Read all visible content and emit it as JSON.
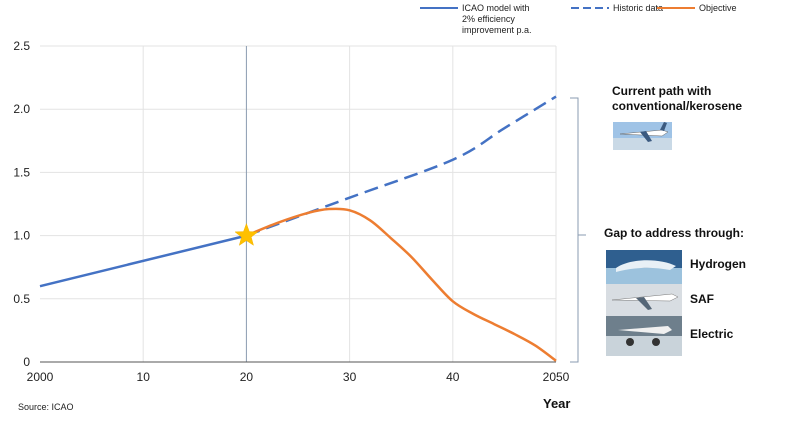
{
  "legend": [
    {
      "label_lines": [
        "ICAO model with",
        "2% efficiency",
        "improvement p.a."
      ],
      "color": "#4472C4",
      "style": "solid"
    },
    {
      "label_lines": [
        "Historic data"
      ],
      "color": "#4472C4",
      "style": "dashed"
    },
    {
      "label_lines": [
        "Objective"
      ],
      "color": "#ED7D31",
      "style": "solid"
    }
  ],
  "source": "Source: ICAO",
  "side_panel": {
    "current_path": [
      "Current path with",
      "conventional/kerosene"
    ],
    "gap_title": "Gap to address through:",
    "options": [
      "Hydrogen",
      "SAF",
      "Electric"
    ],
    "images": [
      "airplane-photo",
      "hydrogen-aircraft-photo",
      "saf-aircraft-photo",
      "electric-aircraft-photo"
    ]
  },
  "chart_data": {
    "type": "line",
    "xlabel": "Year",
    "ylabel": "",
    "xlim": [
      2000,
      2050
    ],
    "ylim": [
      0,
      2.5
    ],
    "x_ticks": [
      2000,
      2010,
      2020,
      2030,
      2040,
      2050
    ],
    "x_tick_labels": [
      "2000",
      "10",
      "20",
      "30",
      "40",
      "2050"
    ],
    "y_ticks": [
      0,
      0.5,
      1.0,
      1.5,
      2.0,
      2.5
    ],
    "y_tick_labels": [
      "0",
      "0.5",
      "1.0",
      "1.5",
      "2.0",
      "2.5"
    ],
    "vertical_marker_x": 2020,
    "star_point": {
      "x": 2020,
      "y": 1.0
    },
    "grid": true,
    "series": [
      {
        "name": "ICAO model with 2% efficiency improvement p.a.",
        "style": "solid",
        "color": "#4472C4",
        "points": [
          [
            2000,
            0.6
          ],
          [
            2020,
            1.0
          ]
        ]
      },
      {
        "name": "Historic data",
        "style": "dashed",
        "color": "#4472C4",
        "points": [
          [
            2020,
            1.0
          ],
          [
            2030,
            1.3
          ],
          [
            2040,
            1.6
          ],
          [
            2045,
            1.85
          ],
          [
            2050,
            2.1
          ]
        ]
      },
      {
        "name": "Objective",
        "style": "solid",
        "color": "#ED7D31",
        "points": [
          [
            2020,
            1.0
          ],
          [
            2023,
            1.1
          ],
          [
            2026,
            1.18
          ],
          [
            2028,
            1.21
          ],
          [
            2030,
            1.2
          ],
          [
            2032,
            1.12
          ],
          [
            2034,
            0.98
          ],
          [
            2036,
            0.83
          ],
          [
            2038,
            0.65
          ],
          [
            2040,
            0.48
          ],
          [
            2042,
            0.38
          ],
          [
            2044,
            0.3
          ],
          [
            2046,
            0.22
          ],
          [
            2048,
            0.13
          ],
          [
            2050,
            0.01
          ]
        ]
      }
    ]
  }
}
